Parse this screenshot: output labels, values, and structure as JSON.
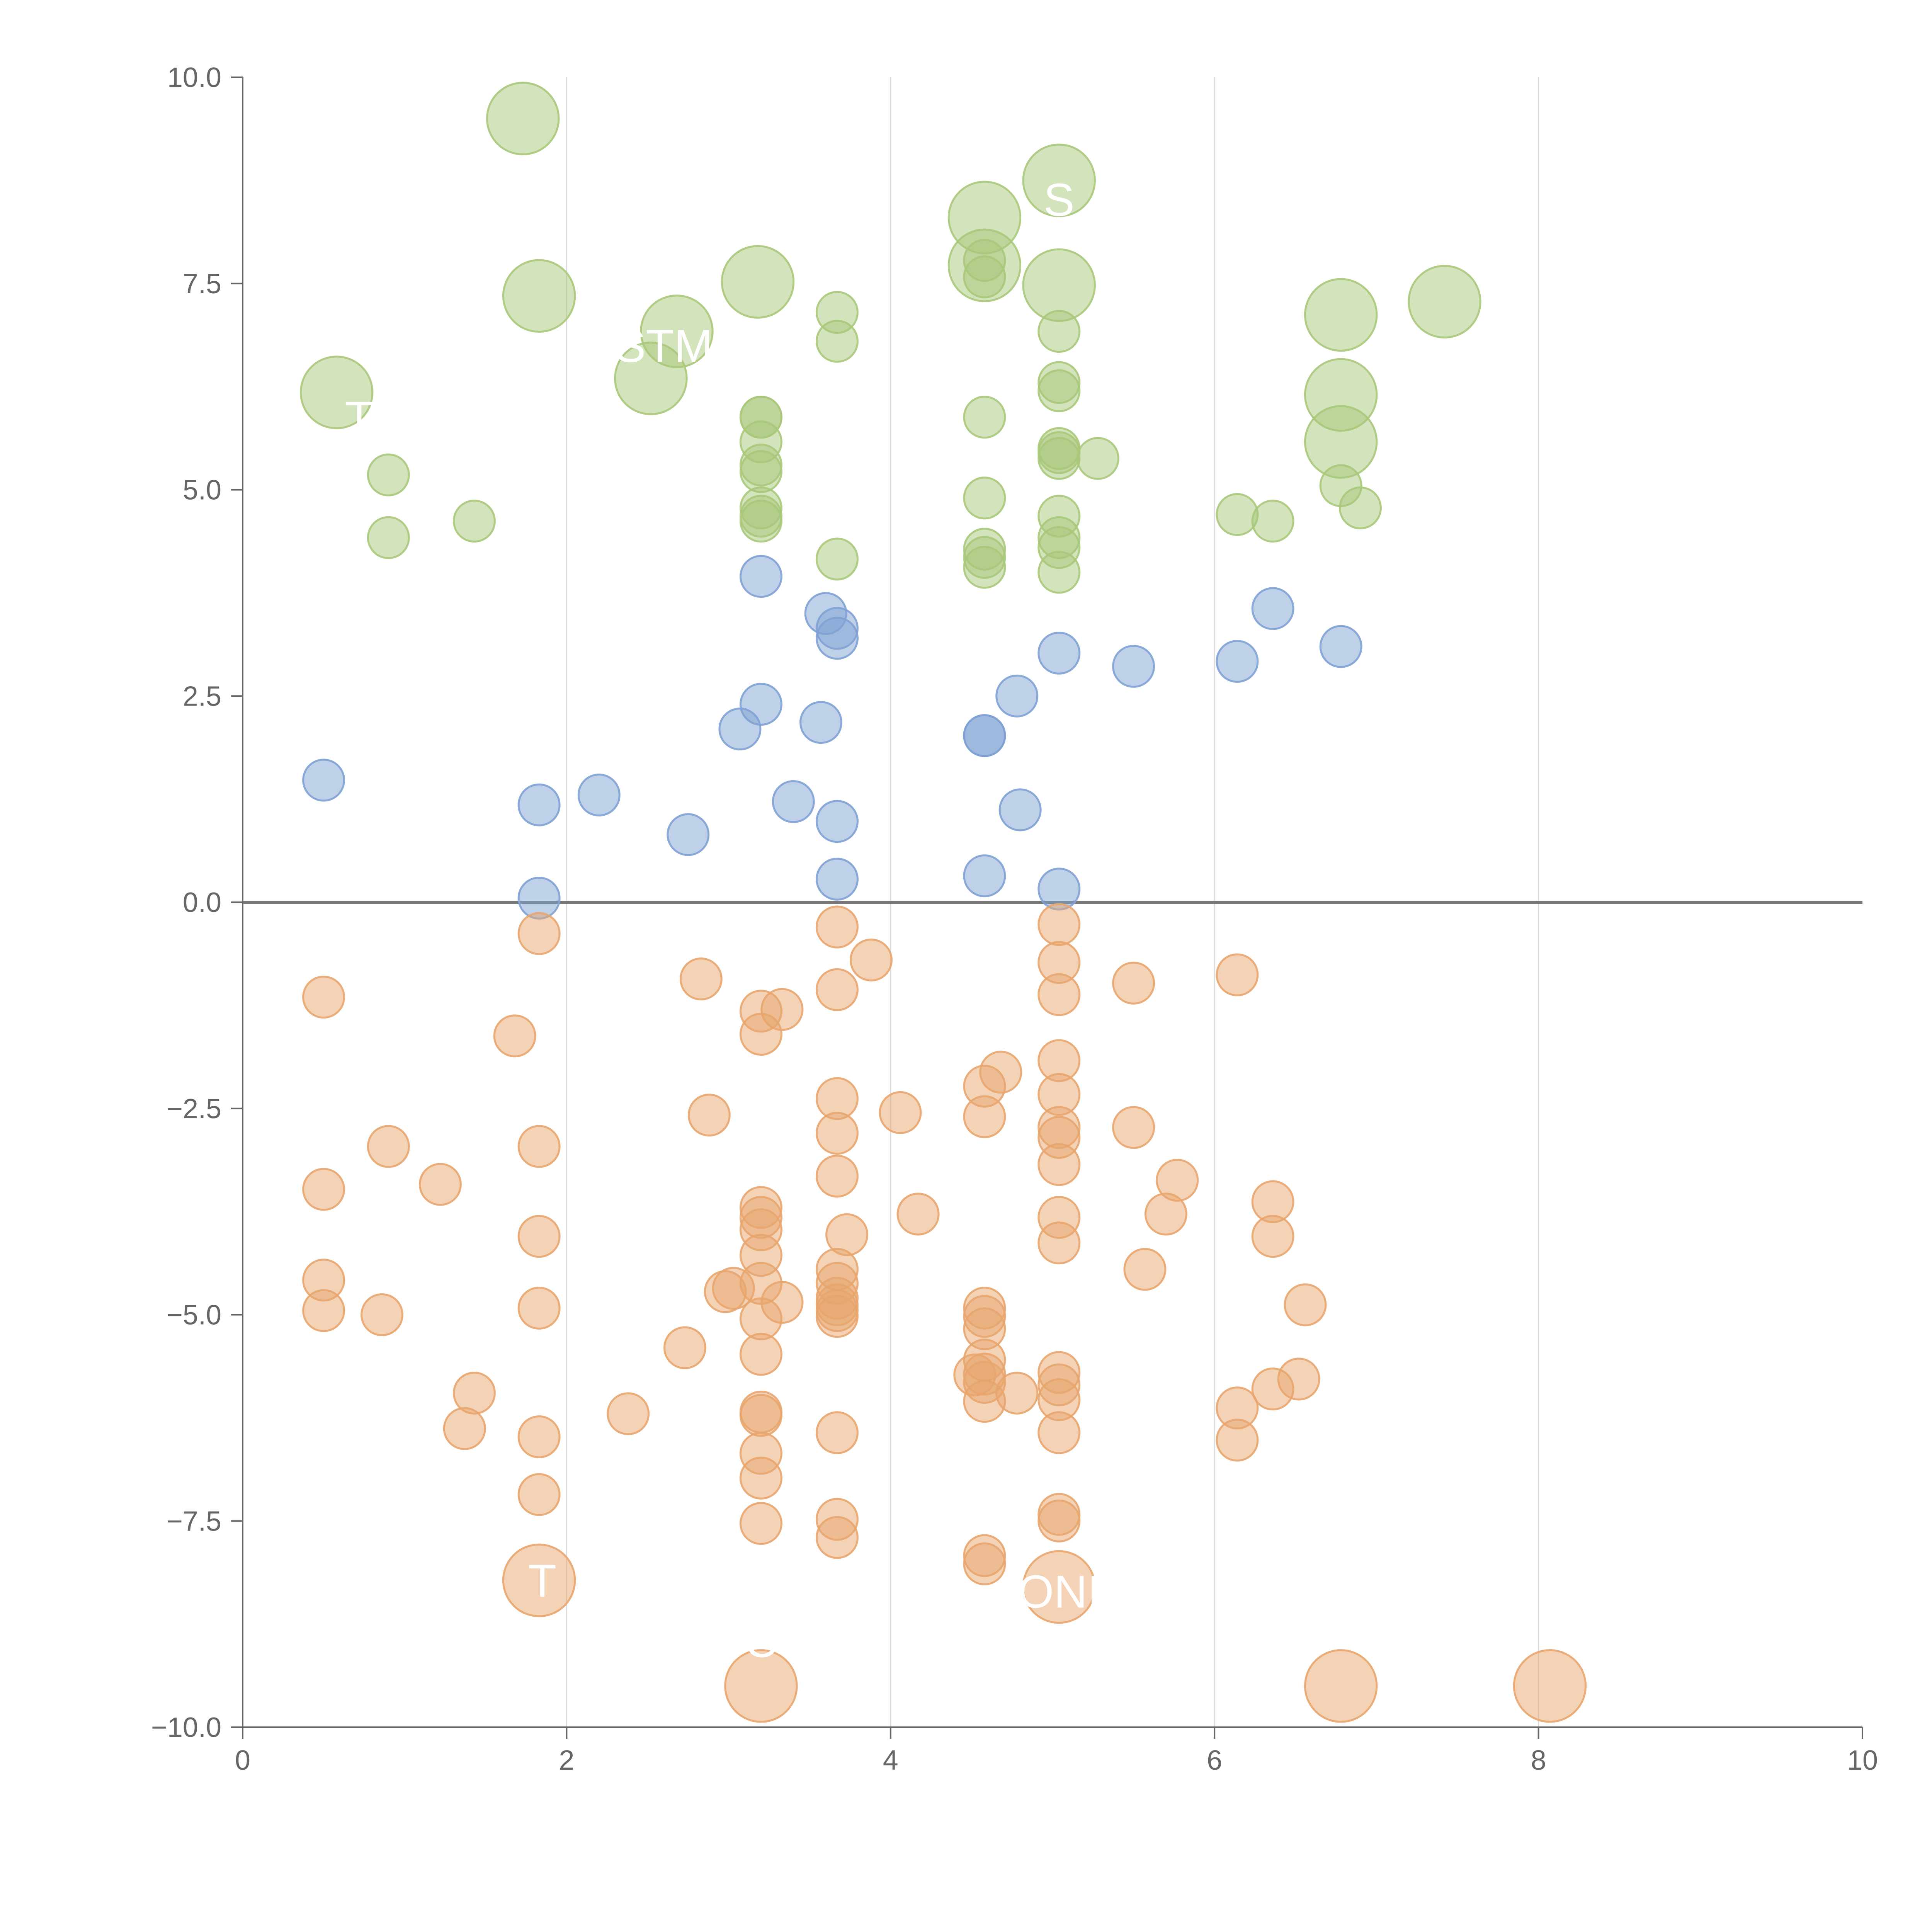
{
  "chart_data": {
    "type": "scatter",
    "title": "",
    "xlabel": "",
    "ylabel": "",
    "xlim": [
      0,
      10
    ],
    "ylim": [
      -10,
      10
    ],
    "xticks": [
      0,
      2,
      4,
      6,
      8,
      10
    ],
    "yticks": [
      -10,
      -7.5,
      -5,
      -2.5,
      0,
      2.5,
      5,
      7.5,
      10
    ],
    "xtick_labels": [
      "0",
      "2",
      "4",
      "6",
      "8",
      "10"
    ],
    "ytick_labels": [
      "−10.0",
      "−7.5",
      "−5.0",
      "−2.5",
      "0.0",
      "2.5",
      "5.0",
      "7.5",
      "10.0"
    ],
    "vertical_gridlines": [
      2,
      4,
      6,
      8
    ],
    "zero_line": 0,
    "colors": {
      "green": "#a8c87a",
      "blue": "#7fa1d4",
      "orange": "#e8a56e",
      "axis": "#666666",
      "zero_line": "#777777",
      "grid": "#dddddd",
      "label": "#ffffff"
    },
    "series": [
      {
        "name": "green",
        "color": "#a8c87a",
        "points": [
          [
            0.9,
            5.18,
            0.5
          ],
          [
            0.9,
            4.42,
            0.5
          ],
          [
            1.43,
            4.62,
            0.5
          ],
          [
            3.2,
            5.88,
            0.5
          ],
          [
            3.2,
            5.88,
            0.5
          ],
          [
            3.2,
            5.58,
            0.5
          ],
          [
            3.2,
            5.3,
            0.5
          ],
          [
            3.2,
            5.22,
            0.5
          ],
          [
            3.2,
            4.78,
            0.5
          ],
          [
            3.2,
            4.68,
            0.5
          ],
          [
            3.2,
            4.62,
            0.5
          ],
          [
            3.67,
            7.15,
            0.5
          ],
          [
            3.67,
            6.8,
            0.5
          ],
          [
            3.67,
            4.16,
            0.5
          ],
          [
            4.58,
            7.78,
            0.5
          ],
          [
            4.58,
            7.58,
            0.5
          ],
          [
            4.58,
            5.88,
            0.5
          ],
          [
            4.58,
            4.9,
            0.5
          ],
          [
            4.58,
            4.28,
            0.5
          ],
          [
            4.58,
            4.18,
            0.5
          ],
          [
            4.58,
            4.06,
            0.5
          ],
          [
            5.04,
            6.92,
            0.5
          ],
          [
            5.04,
            6.3,
            0.5
          ],
          [
            5.04,
            6.2,
            0.5
          ],
          [
            5.04,
            5.5,
            0.5
          ],
          [
            5.04,
            5.45,
            0.5
          ],
          [
            5.04,
            5.38,
            0.5
          ],
          [
            5.04,
            4.68,
            0.5
          ],
          [
            5.04,
            4.42,
            0.5
          ],
          [
            5.04,
            4.3,
            0.5
          ],
          [
            5.04,
            4.0,
            0.5
          ],
          [
            5.28,
            5.38,
            0.5
          ],
          [
            6.14,
            4.7,
            0.5
          ],
          [
            6.36,
            4.62,
            0.5
          ],
          [
            6.78,
            5.05,
            0.5
          ],
          [
            6.9,
            4.78,
            0.5
          ],
          [
            1.73,
            9.5,
            1.0
          ],
          [
            1.83,
            7.35,
            1.0
          ],
          [
            0.58,
            6.18,
            1.0
          ],
          [
            2.52,
            6.35,
            1.0
          ],
          [
            2.68,
            6.92,
            1.0
          ],
          [
            3.18,
            7.52,
            1.0
          ],
          [
            4.58,
            8.3,
            1.0
          ],
          [
            4.58,
            7.72,
            1.0
          ],
          [
            5.04,
            8.75,
            1.0
          ],
          [
            5.04,
            7.48,
            1.0
          ],
          [
            6.78,
            7.12,
            1.0
          ],
          [
            6.78,
            6.15,
            1.0
          ],
          [
            6.78,
            5.58,
            1.0
          ],
          [
            7.42,
            7.28,
            1.0
          ]
        ]
      },
      {
        "name": "blue",
        "color": "#7fa1d4",
        "points": [
          [
            0.5,
            1.48,
            0.5
          ],
          [
            1.83,
            1.18,
            0.5
          ],
          [
            1.83,
            0.05,
            0.5
          ],
          [
            2.2,
            1.3,
            0.5
          ],
          [
            2.75,
            0.82,
            0.5
          ],
          [
            3.07,
            2.1,
            0.5
          ],
          [
            3.2,
            3.95,
            0.5
          ],
          [
            3.2,
            2.4,
            0.5
          ],
          [
            3.4,
            1.22,
            0.5
          ],
          [
            3.57,
            2.18,
            0.5
          ],
          [
            3.6,
            3.5,
            0.5
          ],
          [
            3.67,
            3.32,
            0.5
          ],
          [
            3.67,
            3.2,
            0.5
          ],
          [
            3.67,
            0.98,
            0.5
          ],
          [
            3.67,
            0.28,
            0.5
          ],
          [
            4.58,
            2.02,
            0.5
          ],
          [
            4.58,
            2.02,
            0.5
          ],
          [
            4.58,
            0.32,
            0.5
          ],
          [
            4.78,
            2.5,
            0.5
          ],
          [
            4.8,
            1.12,
            0.5
          ],
          [
            5.04,
            3.02,
            0.5
          ],
          [
            5.04,
            0.16,
            0.5
          ],
          [
            5.5,
            2.86,
            0.5
          ],
          [
            6.14,
            2.92,
            0.5
          ],
          [
            6.36,
            3.56,
            0.5
          ],
          [
            6.78,
            3.1,
            0.5
          ]
        ]
      },
      {
        "name": "orange",
        "color": "#e8a56e",
        "points": [
          [
            0.5,
            -1.15,
            0.5
          ],
          [
            0.5,
            -3.48,
            0.5
          ],
          [
            0.5,
            -4.58,
            0.5
          ],
          [
            0.5,
            -4.95,
            0.5
          ],
          [
            0.9,
            -2.96,
            0.5
          ],
          [
            0.86,
            -5.0,
            0.5
          ],
          [
            1.22,
            -3.42,
            0.5
          ],
          [
            1.37,
            -6.38,
            0.5
          ],
          [
            1.43,
            -5.95,
            0.5
          ],
          [
            1.68,
            -1.62,
            0.5
          ],
          [
            1.83,
            -0.38,
            0.5
          ],
          [
            1.83,
            -2.96,
            0.5
          ],
          [
            1.83,
            -4.05,
            0.5
          ],
          [
            1.83,
            -4.92,
            0.5
          ],
          [
            1.83,
            -6.48,
            0.5
          ],
          [
            1.83,
            -7.18,
            0.5
          ],
          [
            2.38,
            -6.2,
            0.5
          ],
          [
            2.73,
            -5.4,
            0.5
          ],
          [
            2.83,
            -0.93,
            0.5
          ],
          [
            2.88,
            -2.58,
            0.5
          ],
          [
            2.98,
            -4.72,
            0.5
          ],
          [
            3.03,
            -4.68,
            0.5
          ],
          [
            3.2,
            -1.32,
            0.5
          ],
          [
            3.2,
            -1.6,
            0.5
          ],
          [
            3.2,
            -3.7,
            0.5
          ],
          [
            3.2,
            -3.82,
            0.5
          ],
          [
            3.2,
            -3.97,
            0.5
          ],
          [
            3.2,
            -4.28,
            0.5
          ],
          [
            3.2,
            -4.62,
            0.5
          ],
          [
            3.2,
            -5.05,
            0.5
          ],
          [
            3.2,
            -5.48,
            0.5
          ],
          [
            3.2,
            -6.18,
            0.5
          ],
          [
            3.2,
            -6.22,
            0.5
          ],
          [
            3.2,
            -6.68,
            0.5
          ],
          [
            3.2,
            -6.98,
            0.5
          ],
          [
            3.2,
            -7.53,
            0.5
          ],
          [
            3.33,
            -1.3,
            0.5
          ],
          [
            3.33,
            -4.85,
            0.5
          ],
          [
            3.67,
            -0.3,
            0.5
          ],
          [
            3.67,
            -1.06,
            0.5
          ],
          [
            3.67,
            -2.38,
            0.5
          ],
          [
            3.67,
            -2.8,
            0.5
          ],
          [
            3.67,
            -3.32,
            0.5
          ],
          [
            3.67,
            -4.45,
            0.5
          ],
          [
            3.67,
            -4.62,
            0.5
          ],
          [
            3.67,
            -4.8,
            0.5
          ],
          [
            3.67,
            -4.88,
            0.5
          ],
          [
            3.67,
            -4.95,
            0.5
          ],
          [
            3.67,
            -5.02,
            0.5
          ],
          [
            3.67,
            -6.43,
            0.5
          ],
          [
            3.67,
            -7.48,
            0.5
          ],
          [
            3.67,
            -7.7,
            0.5
          ],
          [
            3.73,
            -4.03,
            0.5
          ],
          [
            3.88,
            -0.7,
            0.5
          ],
          [
            4.06,
            -2.55,
            0.5
          ],
          [
            4.17,
            -3.78,
            0.5
          ],
          [
            4.58,
            -2.23,
            0.5
          ],
          [
            4.58,
            -2.6,
            0.5
          ],
          [
            4.58,
            -4.92,
            0.5
          ],
          [
            4.58,
            -5.02,
            0.5
          ],
          [
            4.58,
            -5.17,
            0.5
          ],
          [
            4.58,
            -5.55,
            0.5
          ],
          [
            4.58,
            -5.72,
            0.5
          ],
          [
            4.58,
            -5.82,
            0.5
          ],
          [
            4.58,
            -6.05,
            0.5
          ],
          [
            4.58,
            -7.92,
            0.5
          ],
          [
            4.58,
            -8.02,
            0.5
          ],
          [
            4.68,
            -2.06,
            0.5
          ],
          [
            4.78,
            -5.95,
            0.5
          ],
          [
            4.52,
            -5.73,
            0.5
          ],
          [
            5.04,
            -0.27,
            0.5
          ],
          [
            5.04,
            -0.73,
            0.5
          ],
          [
            5.04,
            -1.12,
            0.5
          ],
          [
            5.04,
            -1.92,
            0.5
          ],
          [
            5.04,
            -2.33,
            0.5
          ],
          [
            5.04,
            -2.73,
            0.5
          ],
          [
            5.04,
            -2.85,
            0.5
          ],
          [
            5.04,
            -3.18,
            0.5
          ],
          [
            5.04,
            -3.82,
            0.5
          ],
          [
            5.04,
            -4.13,
            0.5
          ],
          [
            5.04,
            -5.7,
            0.5
          ],
          [
            5.04,
            -5.85,
            0.5
          ],
          [
            5.04,
            -6.03,
            0.5
          ],
          [
            5.04,
            -6.43,
            0.5
          ],
          [
            5.04,
            -7.42,
            0.5
          ],
          [
            5.04,
            -7.5,
            0.5
          ],
          [
            5.5,
            -0.98,
            0.5
          ],
          [
            5.5,
            -2.73,
            0.5
          ],
          [
            5.57,
            -4.45,
            0.5
          ],
          [
            5.7,
            -3.78,
            0.5
          ],
          [
            5.77,
            -3.37,
            0.5
          ],
          [
            6.14,
            -0.88,
            0.5
          ],
          [
            6.14,
            -6.13,
            0.5
          ],
          [
            6.14,
            -6.52,
            0.5
          ],
          [
            6.36,
            -3.63,
            0.5
          ],
          [
            6.36,
            -4.05,
            0.5
          ],
          [
            6.36,
            -5.9,
            0.5
          ],
          [
            6.52,
            -5.78,
            0.5
          ],
          [
            6.56,
            -4.88,
            0.5
          ],
          [
            1.83,
            -8.22,
            1.0
          ],
          [
            3.2,
            -9.5,
            1.0
          ],
          [
            5.04,
            -8.3,
            1.0
          ],
          [
            6.78,
            -9.5,
            1.0
          ],
          [
            8.07,
            -9.5,
            1.0
          ]
        ]
      }
    ],
    "labels": [
      {
        "text": "T",
        "x": 1.85,
        "y": -8.42
      },
      {
        "text": "C",
        "x": 3.2,
        "y": -9.15
      },
      {
        "text": "ONI",
        "x": 5.04,
        "y": -8.55
      },
      {
        "text": "STM",
        "x": 2.6,
        "y": 6.55
      },
      {
        "text": "S",
        "x": 5.04,
        "y": 8.32
      },
      {
        "text": "T",
        "x": 0.72,
        "y": 5.68
      }
    ]
  }
}
